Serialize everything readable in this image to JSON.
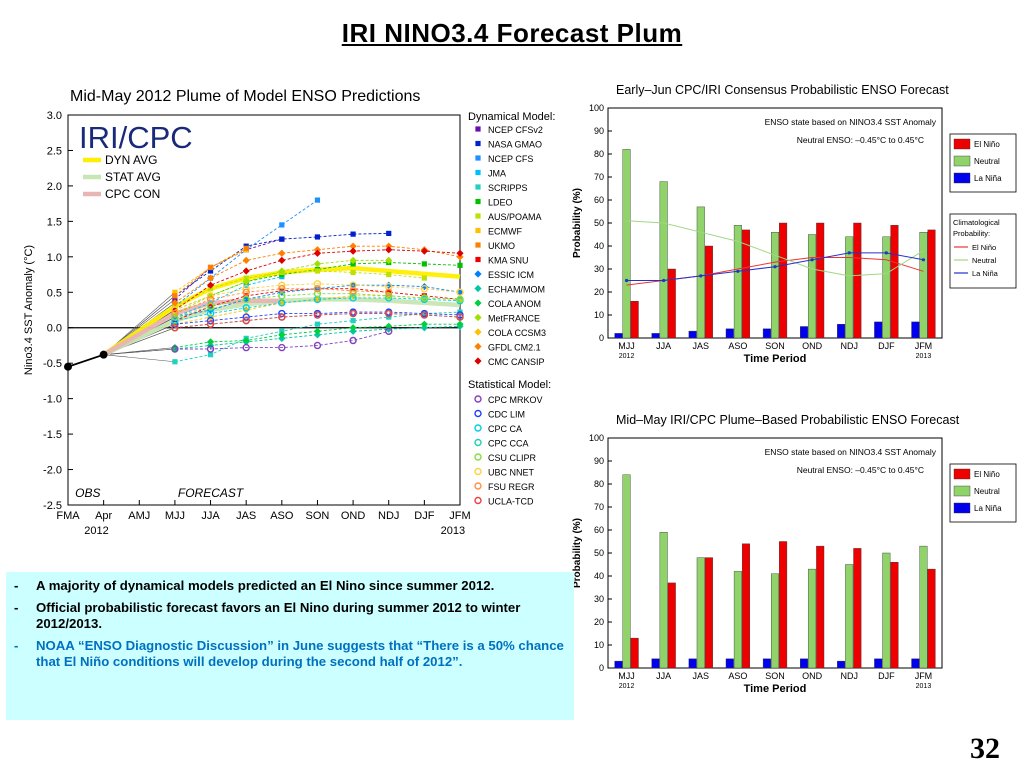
{
  "slide": {
    "title": "IRI NINO3.4 Forecast Plum",
    "page_number": "32",
    "bullets": [
      {
        "text": "A majority of dynamical models predicted an El Nino since summer 2012.",
        "color": "#000000"
      },
      {
        "text": "Official probabilistic forecast favors an El Nino during summer 2012 to  winter 2012/2013.",
        "color": "#000000"
      },
      {
        "text": "NOAA “ENSO Diagnostic Discussion” in June suggests that “There is a 50% chance that El Niño conditions will develop during the second half of 2012”.",
        "color": "#0070c0"
      }
    ]
  },
  "chart_data": [
    {
      "type": "line",
      "title": "Mid-May 2012 Plume of Model ENSO Predictions",
      "watermark": "IRI/CPC",
      "ylabel": "Nino3.4 SST Anomaly (°C)",
      "ylim": [
        -2.5,
        3.0
      ],
      "yticks": [
        "3.0",
        "2.5",
        "2.0",
        "1.5",
        "1.0",
        "0.5",
        "0.0",
        "-0.5",
        "-1.0",
        "-1.5",
        "-2.0",
        "-2.5"
      ],
      "categories": [
        "FMA",
        "Apr",
        "AMJ",
        "MJJ",
        "JJA",
        "JAS",
        "ASO",
        "SON",
        "OND",
        "NDJ",
        "DJF",
        "JFM"
      ],
      "year_labels": [
        "2012",
        "2013"
      ],
      "region_labels": {
        "obs": "OBS",
        "forecast": "FORECAST"
      },
      "observed": [
        -0.55,
        -0.38
      ],
      "summary_legend": [
        {
          "name": "DYN AVG",
          "color": "#ffee00"
        },
        {
          "name": "STAT AVG",
          "color": "#c8e6b4"
        },
        {
          "name": "CPC CON",
          "color": "#e8b4b4"
        }
      ],
      "summary_series": [
        {
          "name": "DYN AVG",
          "color": "#ffee00",
          "values": [
            0.3,
            0.55,
            0.7,
            0.78,
            0.82,
            0.84,
            0.8,
            0.76,
            0.72
          ]
        },
        {
          "name": "STAT AVG",
          "color": "#c8e6b4",
          "values": [
            0.1,
            0.25,
            0.33,
            0.38,
            0.4,
            0.4,
            0.38,
            0.35,
            0.32
          ]
        },
        {
          "name": "CPC CON",
          "color": "#e8b4b4",
          "values": [
            0.2,
            0.35,
            0.38,
            0.38
          ]
        }
      ],
      "dynamical_title": "Dynamical Model:",
      "statistical_title": "Statistical Model:",
      "dynamical_models": [
        {
          "name": "NCEP CFSv2",
          "color": "#6a0dad",
          "marker": "square",
          "values": [
            0.4,
            0.85,
            1.1,
            1.25
          ]
        },
        {
          "name": "NASA GMAO",
          "color": "#0022cc",
          "marker": "square",
          "values": [
            0.45,
            0.8,
            1.15,
            1.25,
            1.28,
            1.32,
            1.33
          ]
        },
        {
          "name": "NCEP CFS",
          "color": "#1e90ff",
          "marker": "square",
          "values": [
            0.3,
            0.7,
            1.1,
            1.45,
            1.8
          ]
        },
        {
          "name": "JMA",
          "color": "#00bfff",
          "marker": "square",
          "values": [
            0.15,
            0.35,
            0.6,
            0.72
          ]
        },
        {
          "name": "SCRIPPS",
          "color": "#20d0c0",
          "marker": "square",
          "values": [
            -0.48,
            -0.38,
            -0.15,
            -0.05,
            0.05,
            0.1,
            0.15,
            0.2,
            0.22
          ]
        },
        {
          "name": "LDEO",
          "color": "#00c000",
          "marker": "square",
          "values": [
            0.25,
            0.45,
            0.65,
            0.75,
            0.82,
            0.9,
            0.92,
            0.9,
            0.88
          ]
        },
        {
          "name": "AUS/POAMA",
          "color": "#c0e000",
          "marker": "square",
          "values": [
            0.3,
            0.55,
            0.7,
            0.78,
            0.8,
            0.78,
            0.75,
            0.7
          ]
        },
        {
          "name": "ECMWF",
          "color": "#ffc000",
          "marker": "square",
          "values": [
            0.5,
            0.85,
            1.1
          ]
        },
        {
          "name": "UKMO",
          "color": "#ff8000",
          "marker": "square",
          "values": [
            0.45,
            0.85,
            1.12
          ]
        },
        {
          "name": "KMA SNU",
          "color": "#ee0000",
          "marker": "square",
          "values": [
            0.1,
            0.3,
            0.45,
            0.52,
            0.55,
            0.55,
            0.5,
            0.45,
            0.4
          ]
        },
        {
          "name": "ESSIC ICM",
          "color": "#0080ff",
          "marker": "diamond",
          "values": [
            0.15,
            0.25,
            0.4,
            0.5,
            0.55,
            0.6,
            0.6,
            0.58,
            0.5
          ]
        },
        {
          "name": "ECHAM/MOM",
          "color": "#00c8a0",
          "marker": "diamond",
          "values": [
            -0.3,
            -0.25,
            -0.2,
            -0.15,
            -0.1,
            -0.05,
            -0.02,
            0.0,
            0.02
          ]
        },
        {
          "name": "COLA ANOM",
          "color": "#00d040",
          "marker": "diamond",
          "values": [
            -0.28,
            -0.2,
            -0.18,
            -0.1,
            -0.05,
            0.0,
            0.02,
            0.05,
            0.05
          ]
        },
        {
          "name": "MetFRANCE",
          "color": "#a0e000",
          "marker": "diamond",
          "values": [
            0.2,
            0.45,
            0.65,
            0.8,
            0.9,
            0.95,
            0.95
          ]
        },
        {
          "name": "COLA CCSM3",
          "color": "#ffc000",
          "marker": "diamond",
          "values": [
            0.05,
            0.15,
            0.25,
            0.35,
            0.4,
            0.45,
            0.45,
            0.42,
            0.4
          ]
        },
        {
          "name": "GFDL CM2.1",
          "color": "#ff8000",
          "marker": "diamond",
          "values": [
            0.35,
            0.7,
            0.95,
            1.05,
            1.1,
            1.15,
            1.15,
            1.1,
            1.0
          ]
        },
        {
          "name": "CMC CANSIP",
          "color": "#dd0000",
          "marker": "diamond",
          "values": [
            0.25,
            0.6,
            0.8,
            0.95,
            1.05,
            1.08,
            1.1,
            1.08,
            1.05
          ]
        }
      ],
      "statistical_models": [
        {
          "name": "CPC MRKOV",
          "color": "#8040c0",
          "marker": "circle",
          "values": [
            -0.3,
            -0.3,
            -0.28,
            -0.28,
            -0.25,
            -0.18,
            -0.05
          ]
        },
        {
          "name": "CDC LIM",
          "color": "#2040ff",
          "marker": "circle",
          "values": [
            0.05,
            0.1,
            0.15,
            0.2,
            0.2,
            0.22,
            0.22,
            0.2,
            0.18
          ]
        },
        {
          "name": "CPC CA",
          "color": "#00d0e0",
          "marker": "circle",
          "values": [
            0.1,
            0.2,
            0.28,
            0.35,
            0.4,
            0.42,
            0.42,
            0.4,
            0.38
          ]
        },
        {
          "name": "CPC CCA",
          "color": "#20d0b0",
          "marker": "circle",
          "values": [
            0.0,
            0.05,
            0.1,
            0.15,
            0.18,
            0.2,
            0.2,
            0.18,
            0.15
          ]
        },
        {
          "name": "CSU CLIPR",
          "color": "#80e040",
          "marker": "circle",
          "values": [
            0.15,
            0.3,
            0.4,
            0.45,
            0.48,
            0.48,
            0.45,
            0.42,
            0.4
          ]
        },
        {
          "name": "UBC NNET",
          "color": "#ffd040",
          "marker": "circle",
          "values": [
            0.25,
            0.45,
            0.55,
            0.6,
            0.62,
            0.6,
            0.58,
            0.55,
            0.5
          ]
        },
        {
          "name": "FSU REGR",
          "color": "#ff9040",
          "marker": "circle",
          "values": [
            0.2,
            0.4,
            0.5,
            0.55,
            0.55,
            0.52,
            0.5
          ]
        },
        {
          "name": "UCLA-TCD",
          "color": "#ee4040",
          "marker": "circle",
          "values": [
            0.0,
            0.05,
            0.1,
            0.15,
            0.18,
            0.2,
            0.2,
            0.18,
            0.15
          ]
        }
      ]
    },
    {
      "type": "bar",
      "title": "Early–Jun CPC/IRI Consensus Probabilistic ENSO Forecast",
      "ylabel": "Probability (%)",
      "xlabel": "Time Period",
      "ylim": [
        0,
        100
      ],
      "categories": [
        "MJJ",
        "JJA",
        "JAS",
        "ASO",
        "SON",
        "OND",
        "NDJ",
        "DJF",
        "JFM"
      ],
      "year_labels": [
        "2012",
        "2013"
      ],
      "note_title": "ENSO state based on NINO3.4 SST Anomaly",
      "note_range": "Neutral ENSO: –0.45°C to 0.45°C",
      "series": [
        {
          "name": "La Niña",
          "color": "#0000ee",
          "values": [
            2,
            2,
            3,
            4,
            4,
            5,
            6,
            7,
            7
          ]
        },
        {
          "name": "Neutral",
          "color": "#8fd36a",
          "values": [
            82,
            68,
            57,
            49,
            46,
            45,
            44,
            44,
            46
          ]
        },
        {
          "name": "El Niño",
          "color": "#ee0000",
          "values": [
            16,
            30,
            40,
            47,
            50,
            50,
            50,
            49,
            47
          ]
        }
      ],
      "legend": [
        "El Niño",
        "Neutral",
        "La Niña"
      ],
      "climatology_legend": {
        "title": "Climatological Probability:",
        "items": [
          "El Niño",
          "Neutral",
          "La Niña"
        ]
      },
      "climatology": {
        "El Niño": [
          23,
          25,
          27,
          30,
          33,
          35,
          35,
          34,
          29
        ],
        "Neutral": [
          51,
          50,
          46,
          42,
          36,
          30,
          27,
          28,
          38
        ],
        "La Niña": [
          25,
          25,
          27,
          29,
          31,
          34,
          37,
          37,
          34
        ]
      }
    },
    {
      "type": "bar",
      "title": "Mid–May IRI/CPC Plume–Based Probabilistic ENSO Forecast",
      "ylabel": "Probability (%)",
      "xlabel": "Time Period",
      "ylim": [
        0,
        100
      ],
      "categories": [
        "MJJ",
        "JJA",
        "JAS",
        "ASO",
        "SON",
        "OND",
        "NDJ",
        "DJF",
        "JFM"
      ],
      "year_labels": [
        "2012",
        "2013"
      ],
      "note_title": "ENSO state based on NINO3.4 SST Anomaly",
      "note_range": "Neutral ENSO: –0.45°C to 0.45°C",
      "series": [
        {
          "name": "La Niña",
          "color": "#0000ee",
          "values": [
            3,
            4,
            4,
            4,
            4,
            4,
            3,
            4,
            4
          ]
        },
        {
          "name": "Neutral",
          "color": "#8fd36a",
          "values": [
            84,
            59,
            48,
            42,
            41,
            43,
            45,
            50,
            53
          ]
        },
        {
          "name": "El Niño",
          "color": "#ee0000",
          "values": [
            13,
            37,
            48,
            54,
            55,
            53,
            52,
            46,
            43
          ]
        }
      ],
      "legend": [
        "El Niño",
        "Neutral",
        "La Niña"
      ]
    }
  ]
}
